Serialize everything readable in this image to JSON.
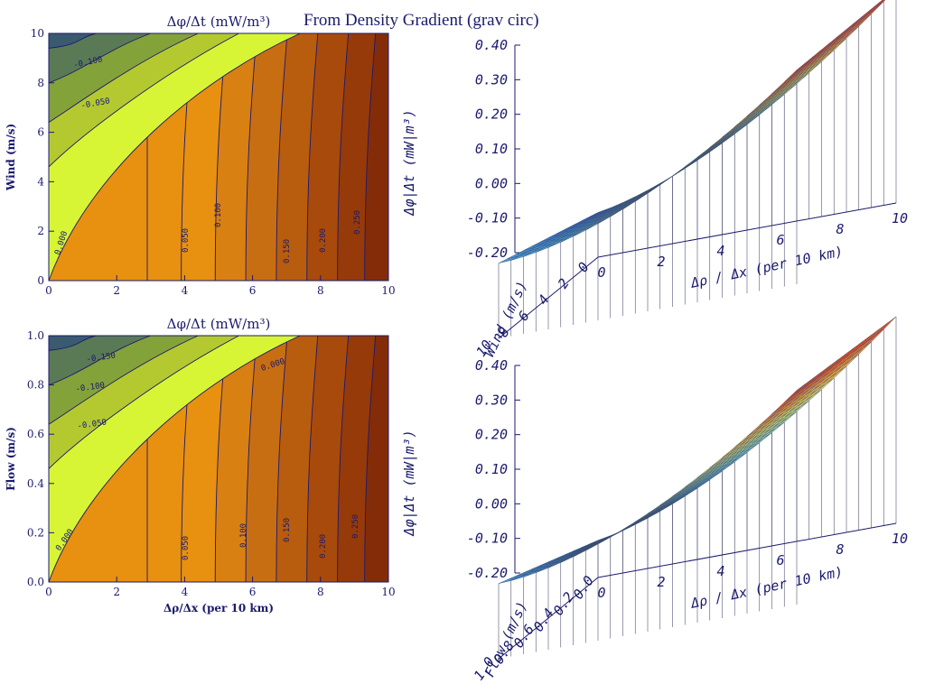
{
  "page_title": "From Density Gradient (grav circ)",
  "colors": {
    "text": "#1a1a6e",
    "contour_line": "#1a1a6e"
  },
  "chart_data": [
    {
      "type": "contour",
      "title": "Δφ/Δt (mW/m³)",
      "xlabel": "",
      "ylabel": "Wind (m/s)",
      "xlim": [
        0,
        10
      ],
      "ylim": [
        0,
        10
      ],
      "xticks": [
        "0",
        "2",
        "4",
        "6",
        "8",
        "10"
      ],
      "yticks": [
        "0",
        "2",
        "4",
        "6",
        "8",
        "10"
      ],
      "fill_colors": [
        "#1f2a7a",
        "#3a5a70",
        "#5a7a55",
        "#84a23a",
        "#b4c930",
        "#d8f535",
        "#e89010",
        "#d98012",
        "#c86e12",
        "#b85c0e",
        "#a84a0c",
        "#963a0a",
        "#842c08"
      ],
      "contour_labels": [
        "-0.100",
        "-0.050",
        "0.000",
        "0.050",
        "0.100",
        "0.150",
        "0.200",
        "0.250"
      ]
    },
    {
      "type": "contour",
      "title": "Δφ/Δt (mW/m³)",
      "xlabel": "Δρ/Δx (per 10 km)",
      "ylabel": "Flow (m/s)",
      "xlim": [
        0,
        10
      ],
      "ylim": [
        0,
        1
      ],
      "xticks": [
        "0",
        "2",
        "4",
        "6",
        "8",
        "10"
      ],
      "yticks": [
        "0.0",
        "0.2",
        "0.4",
        "0.6",
        "0.8",
        "1.0"
      ],
      "fill_colors": [
        "#1f2a7a",
        "#3a5a70",
        "#5a7a55",
        "#84a23a",
        "#b4c930",
        "#d8f535",
        "#e89010",
        "#d98012",
        "#c86e12",
        "#b85c0e",
        "#a84a0c",
        "#963a0a",
        "#842c08"
      ],
      "contour_labels": [
        "-0.150",
        "-0.100",
        "-0.050",
        "0.000",
        "0.000",
        "0.050",
        "0.100",
        "0.150",
        "0.200",
        "0.250"
      ]
    },
    {
      "type": "surface",
      "zlabel": "Δφ|Δt (mW|m³)",
      "xlabel": "Δρ / Δx (per 10 km)",
      "ylabel": "Wind (m/s)",
      "xlim": [
        0,
        10
      ],
      "ylim": [
        0,
        10
      ],
      "zlim": [
        -0.2,
        0.4
      ],
      "xticks": [
        "0",
        "2",
        "4",
        "6",
        "8",
        "10"
      ],
      "yticks": [
        "0",
        "2",
        "4",
        "6",
        "8",
        "10"
      ],
      "zticks": [
        "-0.20",
        "-0.10",
        "0.00",
        "0.10",
        "0.20",
        "0.30",
        "0.40"
      ],
      "colorscale": [
        "#1f2e8a",
        "#2f66c2",
        "#4aa0dc",
        "#7fd0d8",
        "#a8e0b0",
        "#e0e070",
        "#f2b040",
        "#e86a30",
        "#c82820"
      ]
    },
    {
      "type": "surface",
      "zlabel": "Δφ|Δt (mW|m³)",
      "xlabel": "Δρ / Δx (per 10 km)",
      "ylabel": "Flow (m/s)",
      "xlim": [
        0,
        10
      ],
      "ylim": [
        0,
        1
      ],
      "zlim": [
        -0.2,
        0.4
      ],
      "xticks": [
        "0",
        "2",
        "4",
        "6",
        "8",
        "10"
      ],
      "yticks": [
        "0.0",
        "0.2",
        "0.4",
        "0.6",
        "0.8",
        "1.0"
      ],
      "zticks": [
        "-0.20",
        "-0.10",
        "0.00",
        "0.10",
        "0.20",
        "0.30",
        "0.40"
      ],
      "colorscale": [
        "#1f2e8a",
        "#2f66c2",
        "#4aa0dc",
        "#7fd0d8",
        "#a8e0b0",
        "#e0e070",
        "#f2b040",
        "#e86a30",
        "#c82820"
      ]
    }
  ]
}
